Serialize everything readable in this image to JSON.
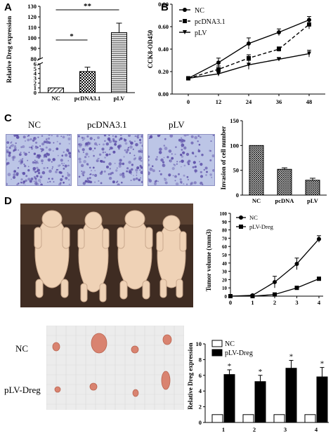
{
  "panel_letters": {
    "a": "A",
    "b": "B",
    "c": "C",
    "d": "D"
  },
  "panel_c_image_labels": [
    "NC",
    "pcDNA3.1",
    "pLV"
  ],
  "panel_d_tumor_labels": [
    "NC",
    "pLV-Dreg"
  ],
  "colors": {
    "micrograph_bg": "#bcc5e6",
    "cell_stain": "#5d4fa8",
    "mouse_skin": "#efd2b6",
    "backdrop": "#3f2c22",
    "tumor": "#d98370"
  },
  "chart_data": [
    {
      "id": "A",
      "type": "bar",
      "ylabel": "Relative Dreg expression",
      "categories": [
        "NC",
        "pcDNA3.1",
        "pLV"
      ],
      "values": [
        1,
        4.4,
        105
      ],
      "errors": [
        0,
        0.9,
        9
      ],
      "patterns": [
        "diagonal-hatch",
        "checker",
        "horizontal-lines"
      ],
      "axis_break": {
        "lower_ticks": [
          0,
          1,
          2,
          3,
          4,
          5,
          6
        ],
        "upper_ticks": [
          80,
          90,
          100,
          110,
          120,
          130
        ]
      },
      "annotations": [
        {
          "text": "*",
          "from": "NC",
          "to": "pcDNA3.1"
        },
        {
          "text": "**",
          "from": "NC",
          "to": "pLV"
        }
      ]
    },
    {
      "id": "B",
      "type": "line",
      "ylabel": "CCK8-OD450",
      "x": [
        0,
        12,
        24,
        36,
        48
      ],
      "ylim": [
        0,
        0.8
      ],
      "yticks": [
        0,
        0.2,
        0.4,
        0.6,
        0.8
      ],
      "ytick_labels": [
        "0.00",
        "0.20",
        "0.40",
        "0.60",
        "0.80"
      ],
      "legend_position": "top-left",
      "series": [
        {
          "name": "NC",
          "marker": "circle",
          "dash": "solid",
          "values": [
            0.14,
            0.28,
            0.45,
            0.55,
            0.66
          ],
          "errors": [
            0.01,
            0.04,
            0.05,
            0.03,
            0.03
          ]
        },
        {
          "name": "pcDNA3.1",
          "marker": "square",
          "dash": "dashed",
          "values": [
            0.14,
            0.22,
            0.32,
            0.4,
            0.62
          ],
          "errors": [
            0.01,
            0.03,
            0.03,
            0.02,
            0.04
          ]
        },
        {
          "name": "pLV",
          "marker": "triangle-down",
          "dash": "solid",
          "values": [
            0.14,
            0.18,
            0.26,
            0.31,
            0.36
          ],
          "errors": [
            0.01,
            0.02,
            0.04,
            0.01,
            0.03
          ]
        }
      ]
    },
    {
      "id": "C",
      "type": "bar",
      "ylabel": "Invasion of cell number",
      "categories": [
        "NC",
        "pcDNA",
        "pLV"
      ],
      "values": [
        100,
        52,
        30
      ],
      "errors": [
        0,
        3,
        4
      ],
      "ylim": [
        0,
        150
      ],
      "yticks": [
        0,
        50,
        100,
        150
      ],
      "patterns": [
        "crosshatch",
        "crosshatch",
        "crosshatch"
      ]
    },
    {
      "id": "D-volume",
      "type": "line",
      "ylabel": "Tumor volume (xmm3)",
      "x": [
        0,
        1,
        2,
        3,
        4
      ],
      "ylim": [
        0,
        100
      ],
      "yticks": [
        0,
        10,
        20,
        30,
        40,
        50,
        60,
        70,
        80,
        90,
        100
      ],
      "legend_position": "top-right",
      "series": [
        {
          "name": "NC",
          "marker": "circle",
          "values": [
            0,
            1,
            17,
            39,
            69
          ],
          "errors": [
            0,
            1,
            7,
            7,
            4
          ]
        },
        {
          "name": "pLV-Dreg",
          "marker": "square",
          "values": [
            0,
            0,
            2,
            10,
            21
          ],
          "errors": [
            0,
            0,
            1,
            2,
            2
          ]
        }
      ]
    },
    {
      "id": "D-expression",
      "type": "bar",
      "ylabel": "Relative Dreg expression",
      "categories": [
        "1",
        "2",
        "3",
        "4"
      ],
      "ylim": [
        0,
        10
      ],
      "yticks": [
        0,
        2,
        4,
        6,
        8,
        10
      ],
      "legend_position": "top-left",
      "series": [
        {
          "name": "NC",
          "fill": "white",
          "values": [
            1,
            1,
            1,
            1
          ],
          "errors": [
            0,
            0,
            0,
            0
          ]
        },
        {
          "name": "pLV-Dreg",
          "fill": "black",
          "values": [
            6.1,
            5.2,
            6.9,
            5.8
          ],
          "errors": [
            0.6,
            0.8,
            1.0,
            1.2
          ]
        }
      ],
      "annotations": [
        "*",
        "*",
        "*",
        "*"
      ]
    }
  ]
}
